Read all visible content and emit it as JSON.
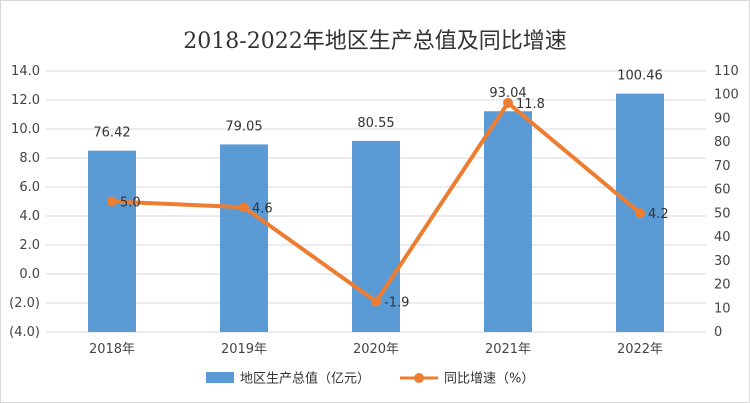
{
  "chart_data": {
    "type": "bar",
    "title": "2018-2022年地区生产总值及同比增速",
    "categories": [
      "2018年",
      "2019年",
      "2020年",
      "2021年",
      "2022年"
    ],
    "series": [
      {
        "name": "地区生产总值（亿元）",
        "type": "bar",
        "axis": "right",
        "values": [
          76.42,
          79.05,
          80.55,
          93.04,
          100.46
        ],
        "color": "#5b9bd5"
      },
      {
        "name": "同比增速（%）",
        "type": "line",
        "axis": "left",
        "values": [
          5.0,
          4.6,
          -1.9,
          11.8,
          4.2
        ],
        "color": "#ed7d31"
      }
    ],
    "left_axis": {
      "ylim": [
        -4.0,
        14.0
      ],
      "ticks": [
        "14.0",
        "12.0",
        "10.0",
        "8.0",
        "6.0",
        "4.0",
        "2.0",
        "0.0",
        "(2.0)",
        "(4.0)"
      ],
      "negative_color": "#c00000"
    },
    "right_axis": {
      "ylim": [
        0,
        110
      ],
      "ticks": [
        "110",
        "100",
        "90",
        "80",
        "70",
        "60",
        "50",
        "40",
        "30",
        "20",
        "10",
        "0"
      ]
    },
    "bar_labels": [
      "76.42",
      "79.05",
      "80.55",
      "93.04",
      "100.46"
    ],
    "line_labels": [
      "5.0",
      "4.6",
      "-1.9",
      "11.8",
      "4.2"
    ],
    "grid": true,
    "legend": "bottom"
  }
}
